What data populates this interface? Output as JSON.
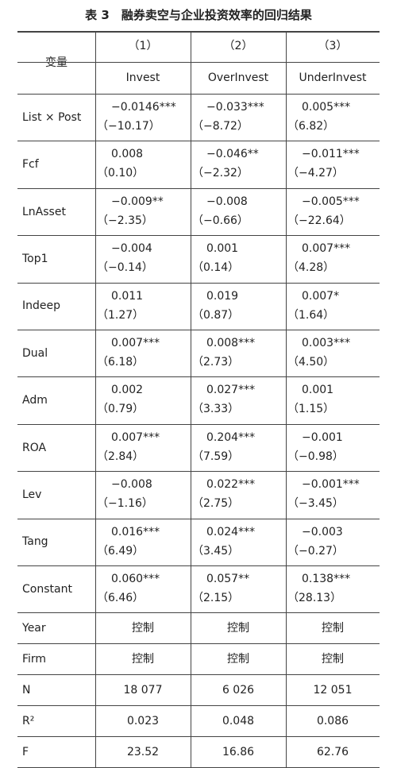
{
  "title": "表 3　融券卖空与企业投资效率的回归结果",
  "table": {
    "header": {
      "stub": "变量",
      "numbers": [
        "（1）",
        "（2）",
        "（3）"
      ],
      "names": [
        "Invest",
        "OverInvest",
        "UnderInvest"
      ]
    },
    "rows": [
      {
        "label": "List × Post",
        "cells": [
          [
            "−0.0146***",
            "（−10.17）"
          ],
          [
            "−0.033***",
            "（−8.72）"
          ],
          [
            "0.005***",
            "（6.82）"
          ]
        ]
      },
      {
        "label": "Fcf",
        "cells": [
          [
            "0.008",
            "（0.10）"
          ],
          [
            "−0.046**",
            "（−2.32）"
          ],
          [
            "−0.011***",
            "（−4.27）"
          ]
        ]
      },
      {
        "label": "LnAsset",
        "cells": [
          [
            "−0.009**",
            "（−2.35）"
          ],
          [
            "−0.008",
            "（−0.66）"
          ],
          [
            "−0.005***",
            "（−22.64）"
          ]
        ]
      },
      {
        "label": "Top1",
        "cells": [
          [
            "−0.004",
            "（−0.14）"
          ],
          [
            "0.001",
            "（0.14）"
          ],
          [
            "0.007***",
            "（4.28）"
          ]
        ]
      },
      {
        "label": "Indeep",
        "cells": [
          [
            "0.011",
            "（1.27）"
          ],
          [
            "0.019",
            "（0.87）"
          ],
          [
            "0.007*",
            "（1.64）"
          ]
        ]
      },
      {
        "label": "Dual",
        "cells": [
          [
            "0.007***",
            "（6.18）"
          ],
          [
            "0.008***",
            "（2.73）"
          ],
          [
            "0.003***",
            "（4.50）"
          ]
        ]
      },
      {
        "label": "Adm",
        "cells": [
          [
            "0.002",
            "（0.79）"
          ],
          [
            "0.027***",
            "（3.33）"
          ],
          [
            "0.001",
            "（1.15）"
          ]
        ]
      },
      {
        "label": "ROA",
        "cells": [
          [
            "0.007***",
            "（2.84）"
          ],
          [
            "0.204***",
            "（7.59）"
          ],
          [
            "−0.001",
            "（−0.98）"
          ]
        ]
      },
      {
        "label": "Lev",
        "cells": [
          [
            "−0.008",
            "（−1.16）"
          ],
          [
            "0.022***",
            "（2.75）"
          ],
          [
            "−0.001***",
            "（−3.45）"
          ]
        ]
      },
      {
        "label": "Tang",
        "cells": [
          [
            "0.016***",
            "（6.49）"
          ],
          [
            "0.024***",
            "（3.45）"
          ],
          [
            "−0.003",
            "（−0.27）"
          ]
        ]
      },
      {
        "label": "Constant",
        "cells": [
          [
            "0.060***",
            "（6.46）"
          ],
          [
            "0.057**",
            "（2.15）"
          ],
          [
            "0.138***",
            "（28.13）"
          ]
        ]
      },
      {
        "label": "Year",
        "cells": [
          [
            "控制"
          ],
          [
            "控制"
          ],
          [
            "控制"
          ]
        ]
      },
      {
        "label": "Firm",
        "cells": [
          [
            "控制"
          ],
          [
            "控制"
          ],
          [
            "控制"
          ]
        ]
      },
      {
        "label": "N",
        "cells": [
          [
            "18 077"
          ],
          [
            "6 026"
          ],
          [
            "12 051"
          ]
        ]
      },
      {
        "label": "R²",
        "cells": [
          [
            "0.023"
          ],
          [
            "0.048"
          ],
          [
            "0.086"
          ]
        ]
      },
      {
        "label": "F",
        "cells": [
          [
            "23.52"
          ],
          [
            "16.86"
          ],
          [
            "62.76"
          ]
        ]
      }
    ]
  }
}
